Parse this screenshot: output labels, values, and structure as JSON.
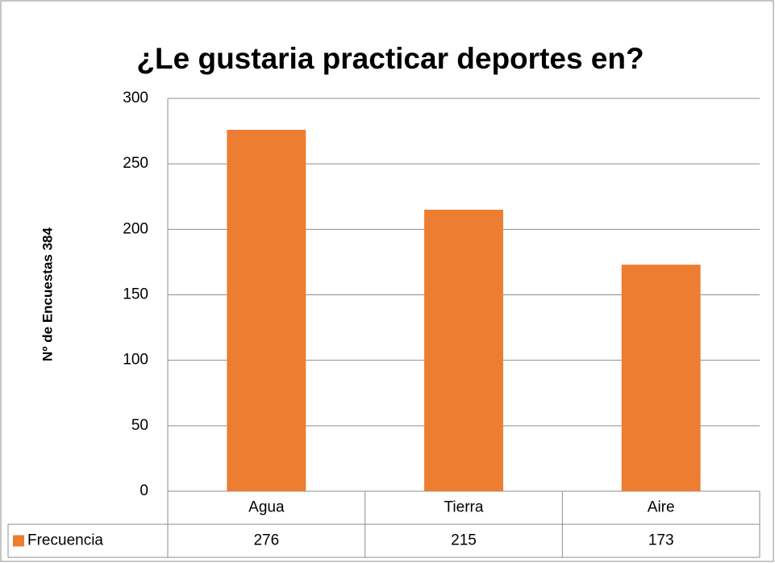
{
  "chart_data": {
    "type": "bar",
    "title": "¿Le gustaria practicar deportes en?",
    "ylabel": "Nº de Encuestas 384",
    "categories": [
      "Agua",
      "Tierra",
      "Aire"
    ],
    "series": [
      {
        "name": "Frecuencia",
        "color": "#ed7d31",
        "values": [
          276,
          215,
          173
        ]
      }
    ],
    "ylim": [
      0,
      300
    ],
    "yticks": [
      0,
      50,
      100,
      150,
      200,
      250,
      300
    ],
    "grid": true,
    "data_table": true
  }
}
